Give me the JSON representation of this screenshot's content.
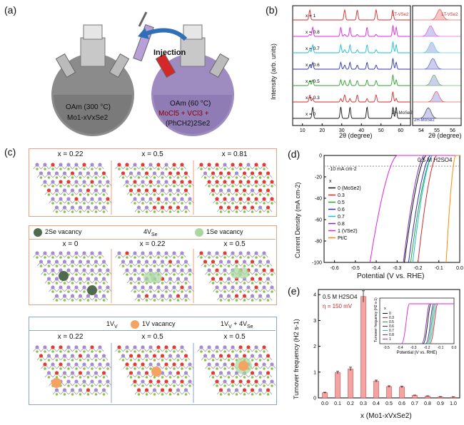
{
  "panels": {
    "a": {
      "label": "(a)",
      "injection": "Injection",
      "left_flask_line1": "OAm (300 °C)",
      "left_flask_line2": "Mo1-xVxSe2",
      "right_flask_line1": "OAm (60 °C)",
      "right_flask_line2": "MoCl5 + VCl3 +",
      "right_flask_line3": "(PhCH2)2Se2"
    },
    "b": {
      "label": "(b)",
      "ylabel": "Intensity (arb. units)",
      "xlabel": "2θ (degree)",
      "xlabel_zoom": "2θ (degree)",
      "xticks": [
        "10",
        "20",
        "30",
        "40",
        "50",
        "60"
      ],
      "xticks_zoom": [
        "54",
        "55",
        "56"
      ],
      "rows": [
        {
          "x": "x = 1",
          "color": "#d62728",
          "tag": "1T-VSe2"
        },
        {
          "x": "x = 0.8",
          "color": "#e020e0",
          "tag": ""
        },
        {
          "x": "x = 0.7",
          "color": "#17becf",
          "tag": ""
        },
        {
          "x": "x = 0.6",
          "color": "#2b2fb5",
          "tag": ""
        },
        {
          "x": "x = 0.5",
          "color": "#2ca02c",
          "tag": ""
        },
        {
          "x": "x = 0.3",
          "color": "#d62728",
          "tag": ""
        },
        {
          "x": "x = 0",
          "color": "#111111",
          "tag": "2H-MoSe2"
        }
      ],
      "peaks_top": [
        "(001)",
        "(002)",
        "(100)",
        "(101)",
        "(102)",
        "(103)",
        "(110)",
        "(103)",
        "(200)",
        "(110)"
      ],
      "peaks_bottom": [
        "(002)",
        "(004)",
        "(100)",
        "(103)",
        "(105)",
        "(110)",
        "(106)"
      ],
      "zoom_top_tag": "1T-VSe2",
      "zoom_bottom_tag": "2H-MoSe2",
      "zoom_peaks": [
        "(110)",
        "(103)",
        "(110)",
        "(110)",
        "(008)/(112)",
        "(008)",
        "(112)"
      ]
    },
    "c": {
      "label": "(c)",
      "row1": [
        "x = 0.22",
        "x = 0.5",
        "x = 0.81"
      ],
      "row2_legend": {
        "left": "2Se vacancy",
        "mid": "4V",
        "mid_sub": "Se",
        "right": "1Se vacancy"
      },
      "row2": [
        "x = 0",
        "x = 0.22",
        "x = 0.5"
      ],
      "row3_legend": {
        "left": "1V",
        "left_sub": "V",
        "mid": "1V vacancy",
        "right": "1V",
        "right_sub": "V",
        "right_tail": " + 4V",
        "right_tail_sub": "Se"
      },
      "row3": [
        "x = 0.22",
        "x = 0.5",
        "x = 0.5"
      ]
    },
    "d": {
      "label": "(d)",
      "electrolyte": "0.5 M H2SO4",
      "ref_line": "-10 mA cm-2",
      "ylabel": "Current Density (mA cm-2)",
      "xlabel": "Potential (V vs. RHE)",
      "xticks": [
        "-0.6",
        "-0.5",
        "-0.4",
        "-0.3",
        "-0.2",
        "-0.1",
        "0.0"
      ],
      "yticks": [
        "0",
        "-20",
        "-40",
        "-60",
        "-80",
        "-100"
      ],
      "legend_title": "x",
      "legend": [
        {
          "name": "0 (MoSe2)",
          "color": "#111111"
        },
        {
          "name": "0.3",
          "color": "#d62728"
        },
        {
          "name": "0.5",
          "color": "#2ca02c"
        },
        {
          "name": "0.6",
          "color": "#2b2fb5"
        },
        {
          "name": "0.7",
          "color": "#17becf"
        },
        {
          "name": "0.8",
          "color": "#7b2fb5"
        },
        {
          "name": "1 (VSe2)",
          "color": "#e020e0"
        },
        {
          "name": "Pt/C",
          "color": "#ff8c00"
        }
      ]
    },
    "e": {
      "label": "(e)",
      "electrolyte": "0.5 M H2SO4",
      "eta": "η = 150 mV",
      "ylabel": "Turnover frequency (H2 s-1)",
      "xlabel": "x (Mo1-xVxSe2)",
      "yticks": [
        "0",
        "1",
        "2",
        "3",
        "4"
      ],
      "inset_ylabel": "Turnover frequency (H2 s-1)",
      "inset_xlabel": "Potential (V vs. RHE)",
      "inset_xticks": [
        "-0.5",
        "-0.4",
        "-0.3",
        "-0.2",
        "-0.1",
        "0.0"
      ],
      "inset_legend_title": "x",
      "inset_legend": [
        "0",
        "0.3",
        "0.5",
        "0.6",
        "0.7",
        "0.8",
        "1"
      ]
    }
  },
  "chart_data": [
    {
      "type": "line",
      "title": "",
      "xlabel": "Potential (V vs. RHE)",
      "ylabel": "Current Density (mA cm-2)",
      "xlim": [
        -0.65,
        0.0
      ],
      "ylim": [
        -100,
        0
      ],
      "series": [
        {
          "name": "0 (MoSe2)",
          "color": "#111111",
          "onset": -0.16,
          "at_minus100": -0.265
        },
        {
          "name": "0.3",
          "color": "#d62728",
          "onset": -0.11,
          "at_minus100": -0.2
        },
        {
          "name": "0.5",
          "color": "#2ca02c",
          "onset": -0.13,
          "at_minus100": -0.235
        },
        {
          "name": "0.6",
          "color": "#2b2fb5",
          "onset": -0.14,
          "at_minus100": -0.245
        },
        {
          "name": "0.7",
          "color": "#17becf",
          "onset": -0.13,
          "at_minus100": -0.225
        },
        {
          "name": "0.8",
          "color": "#7b2fb5",
          "onset": -0.17,
          "at_minus100": -0.27
        },
        {
          "name": "1 (VSe2)",
          "color": "#e020e0",
          "onset": -0.3,
          "at_minus100": -0.43
        },
        {
          "name": "Pt/C",
          "color": "#ff8c00",
          "onset": -0.02,
          "at_minus100": -0.065
        }
      ]
    },
    {
      "type": "bar",
      "title": "",
      "xlabel": "x (Mo1-xVxSe2)",
      "ylabel": "Turnover frequency (H2 s-1)",
      "ylim": [
        0,
        4.2
      ],
      "categories": [
        "0.0",
        "0.1",
        "0.2",
        "0.3",
        "0.4",
        "0.5",
        "0.6",
        "0.7",
        "0.8",
        "0.9",
        "1.0"
      ],
      "values": [
        0.2,
        0.98,
        1.12,
        3.93,
        0.65,
        0.44,
        0.42,
        0.1,
        0.07,
        0.04,
        0.03
      ],
      "errors": [
        0.02,
        0.05,
        0.07,
        0.22,
        0.04,
        0.03,
        0.03,
        0.01,
        0.01,
        0.01,
        0.01
      ]
    }
  ]
}
